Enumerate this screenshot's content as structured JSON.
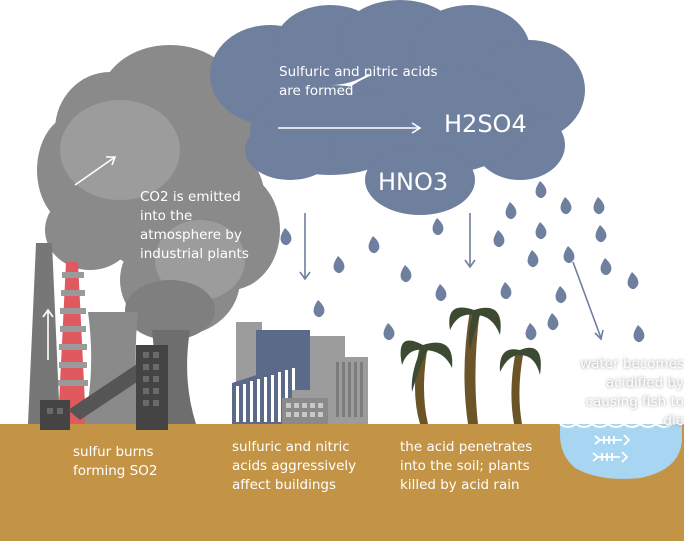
{
  "labels": {
    "cloud_caption": "Sulfuric and nitric acids are formed",
    "h2so4": "H2SO4",
    "hno3": "HNO3",
    "co2": "CO2 is emitted into the atmosphere by industrial plants",
    "sulfur": "sulfur burns forming SO2",
    "buildings": "sulfuric and nitric acids aggressively affect buildings",
    "soil": "the acid penetrates into the soil; plants killed by acid rain",
    "water": "water becomes acidified by causing fish to die"
  },
  "colors": {
    "cloud": "#6f7f9e",
    "smoke_dark": "#7a7a7a",
    "smoke_light": "#9a9a9a",
    "ground": "#c39446",
    "water": "#a8d6f2",
    "tree": "#6b5428",
    "palm_leaf": "#3d4a32",
    "building_blue": "#5c6a8a",
    "building_gray": "#9c9c9c",
    "factory": "#4a4a4a",
    "stripe_red": "#e0595f"
  }
}
